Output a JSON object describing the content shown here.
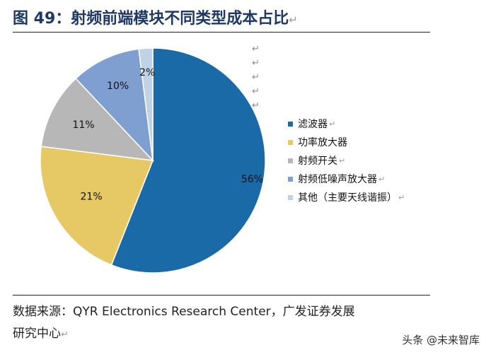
{
  "figure": {
    "title": "图 49：射频前端模块不同类型成本占比",
    "return_mark": "↵",
    "source_line1": "数据来源：QYR Electronics Research Center，广发证券发展",
    "source_line2": "研究中心",
    "watermark": "头条 @未来智库"
  },
  "chart_data": {
    "type": "pie",
    "slices": [
      {
        "label": "滤波器",
        "value": 56,
        "value_label": "56%",
        "color": "#1b6aa8"
      },
      {
        "label": "功率放大器",
        "value": 21,
        "value_label": "21%",
        "color": "#e6c865"
      },
      {
        "label": "射频开关",
        "value": 11,
        "value_label": "11%",
        "color": "#b7b7b7"
      },
      {
        "label": "射频低噪声放大器",
        "value": 10,
        "value_label": "10%",
        "color": "#7f9fd0"
      },
      {
        "label": "其他（主要天线谐振）",
        "value": 2,
        "value_label": "2%",
        "color": "#bfd2e6"
      }
    ],
    "start_angle": "12 o'clock",
    "direction": "clockwise",
    "legend_position": "right"
  }
}
